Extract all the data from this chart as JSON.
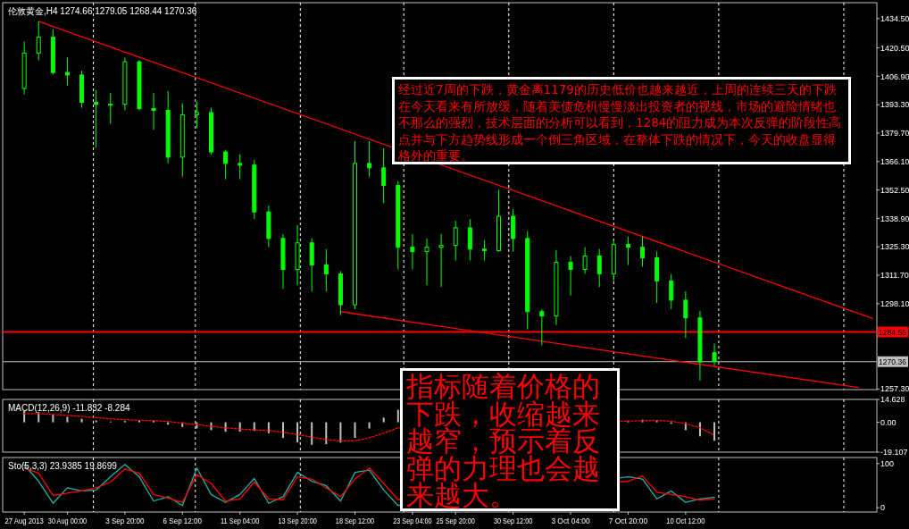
{
  "chart_data": [
    {
      "type": "candlestick",
      "title": "伦敦黄金,H4  1274.66 1279.05 1268.44 1270.36",
      "color": "#00ff00",
      "grid": "x",
      "categories": [
        null,
        null,
        null,
        null,
        null,
        null,
        null,
        null,
        null,
        null,
        null,
        null,
        null,
        null,
        null,
        null,
        null,
        null,
        null,
        null,
        null,
        null,
        null,
        null,
        null,
        null,
        null,
        null,
        null,
        null,
        null,
        null,
        null,
        null,
        null,
        null,
        null,
        null,
        null,
        null,
        null,
        null,
        null,
        null,
        null,
        null,
        null,
        null,
        null,
        null,
        null,
        null,
        null,
        null,
        null,
        null,
        null,
        null,
        null,
        null
      ],
      "ohlc": [
        [
          1401.1,
          1423.5,
          1398.2,
          1418.0
        ],
        [
          1418.0,
          1433.2,
          1414.6,
          1425.6
        ],
        [
          1425.6,
          1429.4,
          1407.9,
          1408.7
        ],
        [
          1408.7,
          1415.9,
          1402.4,
          1407.5
        ],
        [
          1407.5,
          1409.6,
          1391.8,
          1394.4
        ],
        [
          1394.4,
          1400.3,
          1372.8,
          1393.5
        ],
        [
          1393.5,
          1399.0,
          1384.2,
          1393.5
        ],
        [
          1393.5,
          1415.9,
          1390.6,
          1413.8
        ],
        [
          1413.8,
          1414.6,
          1390.6,
          1391.4
        ],
        [
          1391.4,
          1399.0,
          1381.3,
          1390.6
        ],
        [
          1390.6,
          1399.9,
          1365.2,
          1368.2
        ],
        [
          1368.2,
          1394.0,
          1358.9,
          1388.5
        ],
        [
          1388.5,
          1394.8,
          1382.1,
          1389.5
        ],
        [
          1389.5,
          1391.8,
          1369.5,
          1370.7
        ],
        [
          1370.7,
          1371.6,
          1357.6,
          1365.2
        ],
        [
          1365.2,
          1369.5,
          1357.6,
          1364.4
        ],
        [
          1364.4,
          1366.9,
          1338.6,
          1342.0
        ],
        [
          1342.0,
          1345.0,
          1325.1,
          1329.3
        ],
        [
          1329.3,
          1331.4,
          1305.2,
          1314.5
        ],
        [
          1314.5,
          1335.7,
          1306.9,
          1327.2
        ],
        [
          1327.2,
          1329.3,
          1304.0,
          1316.6
        ],
        [
          1316.6,
          1324.2,
          1304.0,
          1312.4
        ],
        [
          1312.4,
          1313.7,
          1292.6,
          1297.6
        ],
        [
          1297.6,
          1375.8,
          1295.5,
          1365.2
        ],
        [
          1365.2,
          1375.8,
          1358.9,
          1363.1
        ],
        [
          1363.1,
          1372.4,
          1346.2,
          1354.7
        ],
        [
          1354.7,
          1356.8,
          1314.5,
          1325.1
        ],
        [
          1325.1,
          1331.4,
          1314.5,
          1323.0
        ],
        [
          1323.0,
          1329.3,
          1306.9,
          1325.1
        ],
        [
          1325.1,
          1331.4,
          1306.1,
          1326.0
        ],
        [
          1326.0,
          1337.8,
          1318.8,
          1334.4
        ],
        [
          1334.4,
          1338.6,
          1318.8,
          1324.2
        ],
        [
          1324.2,
          1328.5,
          1318.8,
          1323.5
        ],
        [
          1323.5,
          1352.6,
          1323.0,
          1339.9
        ],
        [
          1339.9,
          1343.3,
          1323.0,
          1329.3
        ],
        [
          1329.3,
          1332.9,
          1285.8,
          1294.3
        ],
        [
          1294.3,
          1295.5,
          1278.2,
          1292.2
        ],
        [
          1292.2,
          1323.8,
          1287.9,
          1317.9
        ],
        [
          1317.9,
          1320.9,
          1301.9,
          1314.5
        ],
        [
          1314.5,
          1325.1,
          1312.4,
          1320.9
        ],
        [
          1320.9,
          1324.2,
          1306.1,
          1312.4
        ],
        [
          1312.4,
          1328.5,
          1309.0,
          1326.4
        ],
        [
          1326.4,
          1330.2,
          1316.6,
          1325.1
        ],
        [
          1325.1,
          1330.2,
          1315.8,
          1320.0
        ],
        [
          1320.0,
          1323.0,
          1298.5,
          1309.0
        ],
        [
          1309.0,
          1312.4,
          1295.5,
          1299.8
        ],
        [
          1299.8,
          1304.0,
          1281.6,
          1291.3
        ],
        [
          1291.3,
          1294.7,
          1261.3,
          1270.2
        ],
        [
          1274.66,
          1279.05,
          1268.44,
          1270.36
        ],
        null,
        null,
        null,
        null,
        null,
        null,
        null,
        null,
        null,
        null,
        null
      ],
      "series": [
        {
          "type": "line",
          "color": "#ff0000",
          "values": [
            null,
            1433.2,
            null,
            null,
            null,
            null,
            null,
            null,
            null,
            null,
            null,
            null,
            null,
            null,
            null,
            null,
            null,
            null,
            null,
            null,
            null,
            null,
            null,
            null,
            null,
            null,
            null,
            null,
            null,
            null,
            null,
            null,
            null,
            null,
            null,
            null,
            null,
            null,
            null,
            null,
            null,
            null,
            null,
            null,
            null,
            null,
            null,
            null,
            null,
            null,
            null,
            null,
            null,
            null,
            null,
            null,
            null,
            null,
            null,
            1291.0
          ]
        },
        {
          "type": "line",
          "color": "#ff0000",
          "values": [
            null,
            null,
            null,
            null,
            null,
            null,
            null,
            null,
            null,
            null,
            null,
            null,
            null,
            null,
            null,
            null,
            null,
            null,
            null,
            null,
            null,
            null,
            1294.3,
            null,
            null,
            null,
            null,
            null,
            null,
            null,
            null,
            null,
            null,
            null,
            null,
            null,
            null,
            null,
            null,
            null,
            null,
            null,
            null,
            null,
            null,
            null,
            null,
            null,
            null,
            null,
            null,
            null,
            null,
            null,
            null,
            null,
            null,
            null,
            1258.0,
            null
          ]
        }
      ],
      "ylim": [
        1257.0,
        1442.1
      ],
      "yticks": [
        {
          "value": 1434.5,
          "label": "1434.50"
        },
        {
          "value": 1420.5,
          "label": "1420.50"
        },
        {
          "value": 1406.9,
          "label": "1406.90"
        },
        {
          "value": 1393.3,
          "label": "1393.30"
        },
        {
          "value": 1379.7,
          "label": "1379.70"
        },
        {
          "value": 1366.1,
          "label": "1366.10"
        },
        {
          "value": 1352.5,
          "label": "1352.50"
        },
        {
          "value": 1338.9,
          "label": "1338.90"
        },
        {
          "value": 1325.3,
          "label": "1325.30"
        },
        {
          "value": 1311.7,
          "label": "1311.70"
        },
        {
          "value": 1298.1,
          "label": "1298.10"
        },
        {
          "value": 1257.3,
          "label": "1257.30"
        }
      ],
      "ref_lines": [
        {
          "axis": "y",
          "value": 1284.55,
          "label": "1284.55",
          "color": "#ff0000"
        },
        {
          "axis": "y",
          "value": 1270.36,
          "label": "1270.36",
          "color": "#c0c0c0"
        }
      ],
      "annotations": [
        "经过近7周的下跌，黄金离1179的历史低价也越来越近，上周的连续三天的下跌在今天看来有所放缓，随着美债危机慢慢淡出投资者的视线，市场的避险情绪也不那么的强烈，技术层面的分析可以看到，1284的阻力成为本次反弹的阶段性高点并与下方趋势线形成一个倒三角区域，在整体下跌的情况下，今天的收盘显得格外的重要。"
      ]
    },
    {
      "type": "bar",
      "title": "MACD(12,26,9) -11.832 -8.284",
      "grid": "x",
      "categories": [
        null,
        null,
        null,
        null,
        null,
        null,
        null,
        null,
        null,
        null,
        null,
        null,
        null,
        null,
        null,
        null,
        null,
        null,
        null,
        null,
        null,
        null,
        null,
        null,
        null,
        null,
        null,
        null,
        null,
        null,
        null,
        null,
        null,
        null,
        null,
        null,
        null,
        null,
        null,
        null,
        null,
        null,
        null,
        null,
        null,
        null,
        null,
        null,
        null,
        null,
        null,
        null,
        null,
        null,
        null,
        null,
        null,
        null,
        null,
        null
      ],
      "series": [
        {
          "type": "bar",
          "color": "#c0c0c0",
          "values": [
            7.4,
            6.5,
            5.0,
            3.5,
            2.3,
            1.2,
            0.5,
            0.8,
            1.5,
            1.0,
            -1.5,
            -3,
            -4,
            -5,
            -6,
            -6,
            -5.5,
            -7,
            -10,
            -12.8,
            -14.4,
            -14,
            -13,
            -10,
            -4,
            3,
            8,
            null,
            null,
            null,
            null,
            null,
            null,
            null,
            null,
            null,
            null,
            null,
            null,
            null,
            null,
            null,
            1.0,
            1.7,
            1.5,
            -1,
            -5,
            -9,
            -11.832,
            null,
            null,
            null,
            null,
            null,
            null,
            null,
            null,
            null,
            null,
            null
          ]
        },
        {
          "type": "line",
          "color": "#ff0000",
          "line_style": "dotted",
          "values": [
            5.5,
            5.5,
            5,
            4.5,
            3.8,
            3,
            2.2,
            1.6,
            1.3,
            1.1,
            0.5,
            -0.5,
            -1.5,
            -2.5,
            -3.5,
            -4.3,
            -4.8,
            -5.3,
            -6.3,
            -7.8,
            -9.5,
            -11,
            -12,
            -11.8,
            -10,
            -7,
            -3.5,
            null,
            null,
            null,
            null,
            null,
            null,
            null,
            null,
            null,
            null,
            null,
            null,
            null,
            null,
            null,
            0.8,
            1.0,
            1.2,
            0.7,
            -0.8,
            -3.5,
            -8.284,
            null,
            null,
            null,
            null,
            null,
            null,
            null,
            null,
            null,
            null,
            null
          ]
        }
      ],
      "ylim": [
        -19.107,
        14.628
      ],
      "yticks": [
        14.628,
        {
          "value": 0,
          "label": "0.00"
        },
        -19.107
      ],
      "annotations": [
        "指标随着价格的下跌，收缩越来越窄，预示着反弹的力理也会越来越大。"
      ]
    },
    {
      "type": "line",
      "title": "Sto(5,3,3) 23.9385 19.8699",
      "grid": "x",
      "categories": [
        "27 Aug 2013",
        null,
        null,
        "30 Aug 00:00",
        null,
        null,
        null,
        "3 Sep 20:00",
        null,
        null,
        null,
        "6 Sep 12:00",
        null,
        null,
        null,
        "11 Sep 04:00",
        null,
        null,
        null,
        "13 Sep 20:00",
        null,
        null,
        null,
        "18 Sep 12:00",
        null,
        null,
        null,
        "23 Sep 04:00",
        null,
        null,
        "25 Sep 20:00",
        null,
        null,
        null,
        "30 Sep 12:00",
        null,
        null,
        null,
        "3 Oct 04:00",
        null,
        null,
        null,
        "7 Oct 20:00",
        null,
        null,
        null,
        "10 Oct 12:00",
        null,
        null,
        null,
        null,
        null,
        null,
        null,
        null,
        null,
        null,
        null,
        null,
        null
      ],
      "series": [
        {
          "color": "#20b2aa",
          "values": [
            97,
            60,
            10,
            45,
            38,
            40,
            70,
            98,
            70,
            15,
            25,
            5,
            90,
            30,
            12,
            30,
            66,
            10,
            25,
            80,
            60,
            50,
            15,
            80,
            85,
            40,
            5,
            null,
            null,
            null,
            null,
            null,
            null,
            null,
            null,
            null,
            null,
            null,
            null,
            null,
            null,
            null,
            70,
            65,
            20,
            38,
            12,
            20,
            23.9385,
            null,
            null,
            null,
            null,
            null,
            null,
            null,
            null,
            null,
            null,
            null
          ]
        },
        {
          "color": "#ff0000",
          "values": [
            90,
            78,
            28,
            33,
            38,
            45,
            58,
            88,
            78,
            30,
            22,
            12,
            75,
            55,
            15,
            20,
            58,
            20,
            18,
            70,
            65,
            45,
            25,
            65,
            90,
            55,
            18,
            null,
            null,
            null,
            null,
            null,
            null,
            null,
            null,
            null,
            null,
            null,
            null,
            null,
            null,
            null,
            60,
            72,
            35,
            30,
            25,
            17,
            19.8699,
            null,
            null,
            null,
            null,
            null,
            null,
            null,
            null,
            null,
            null,
            null
          ]
        }
      ],
      "ylim": [
        -9.8,
        113.7
      ],
      "yticks": [
        0,
        100
      ]
    }
  ]
}
